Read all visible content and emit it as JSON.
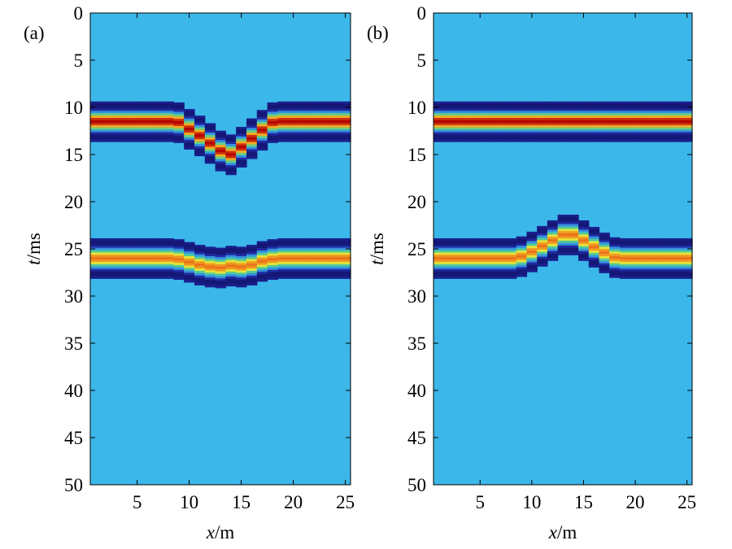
{
  "chart_data": [
    {
      "type": "heatmap",
      "panel_label": "(a)",
      "xlabel": {
        "var": "x",
        "unit": "/m"
      },
      "ylabel": {
        "var": "t",
        "unit": "/ms"
      },
      "xlim": [
        0.5,
        25.5
      ],
      "ylim": [
        50,
        0
      ],
      "xticks": [
        5,
        10,
        15,
        20,
        25
      ],
      "yticks": [
        0,
        5,
        10,
        15,
        20,
        25,
        30,
        35,
        40,
        45,
        50
      ],
      "background_color": "#3cb7ea",
      "traces": [
        1,
        2,
        3,
        4,
        5,
        6,
        7,
        8,
        9,
        10,
        11,
        12,
        13,
        14,
        15,
        16,
        17,
        18,
        19,
        20,
        21,
        22,
        23,
        24,
        25
      ],
      "events": [
        {
          "name": "",
          "peak_color": "#b40000",
          "times_ms": [
            11.5,
            11.5,
            11.5,
            11.5,
            11.5,
            11.5,
            11.5,
            11.5,
            11.6,
            12.3,
            13.0,
            13.8,
            14.6,
            15.0,
            14.2,
            13.3,
            12.4,
            11.6,
            11.5,
            11.5,
            11.5,
            11.5,
            11.5,
            11.5,
            11.5
          ]
        },
        {
          "name": "",
          "peak_color": "#ee7d1e",
          "times_ms": [
            26.0,
            26.0,
            26.0,
            26.0,
            26.0,
            26.0,
            26.0,
            26.0,
            26.1,
            26.4,
            26.7,
            26.9,
            27.0,
            26.8,
            26.9,
            26.7,
            26.3,
            26.1,
            26.0,
            26.0,
            26.0,
            26.0,
            26.0,
            26.0,
            26.0
          ]
        }
      ]
    },
    {
      "type": "heatmap",
      "panel_label": "(b)",
      "xlabel": {
        "var": "x",
        "unit": "/m"
      },
      "ylabel": {
        "var": "t",
        "unit": "/ms"
      },
      "xlim": [
        0.5,
        25.5
      ],
      "ylim": [
        50,
        0
      ],
      "xticks": [
        5,
        10,
        15,
        20,
        25
      ],
      "yticks": [
        0,
        5,
        10,
        15,
        20,
        25,
        30,
        35,
        40,
        45,
        50
      ],
      "background_color": "#3cb7ea",
      "traces": [
        1,
        2,
        3,
        4,
        5,
        6,
        7,
        8,
        9,
        10,
        11,
        12,
        13,
        14,
        15,
        16,
        17,
        18,
        19,
        20,
        21,
        22,
        23,
        24,
        25
      ],
      "events": [
        {
          "name": "",
          "peak_color": "#b40000",
          "times_ms": [
            11.5,
            11.5,
            11.5,
            11.5,
            11.5,
            11.5,
            11.5,
            11.5,
            11.5,
            11.5,
            11.5,
            11.5,
            11.5,
            11.5,
            11.5,
            11.5,
            11.5,
            11.5,
            11.5,
            11.5,
            11.5,
            11.5,
            11.5,
            11.5,
            11.5
          ]
        },
        {
          "name": "",
          "peak_color": "#ee7d1e",
          "times_ms": [
            26.0,
            26.0,
            26.0,
            26.0,
            26.0,
            26.0,
            26.0,
            26.0,
            25.8,
            25.3,
            24.7,
            24.1,
            23.5,
            23.5,
            24.1,
            24.8,
            25.4,
            25.9,
            26.0,
            26.0,
            26.0,
            26.0,
            26.0,
            26.0,
            26.0
          ]
        }
      ]
    }
  ]
}
